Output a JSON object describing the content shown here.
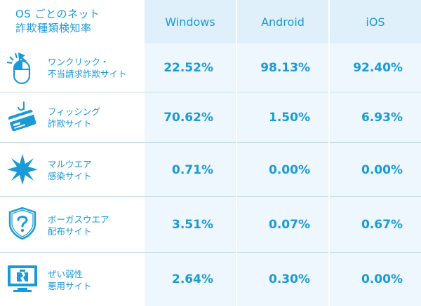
{
  "header": {
    "title_line1": "OS ごとのネット",
    "title_line2": "詐欺種類検知率",
    "columns": [
      "Windows",
      "Android",
      "iOS"
    ]
  },
  "rows": [
    {
      "label_line1": "ワンクリック・",
      "label_line2": "不当請求詐欺サイト",
      "icon": "mouse-click-icon",
      "values": [
        "22.52%",
        "98.13%",
        "92.40%"
      ]
    },
    {
      "label_line1": "フィッシング",
      "label_line2": "詐欺サイト",
      "icon": "phishing-card-icon",
      "values": [
        "70.62%",
        "1.50%",
        "6.93%"
      ]
    },
    {
      "label_line1": "マルウエア",
      "label_line2": "感染サイト",
      "icon": "malware-burst-icon",
      "values": [
        "0.71%",
        "0.00%",
        "0.00%"
      ]
    },
    {
      "label_line1": "ボーガスウエア",
      "label_line2": "配布サイト",
      "icon": "bogus-shield-icon",
      "values": [
        "3.51%",
        "0.07%",
        "0.67%"
      ]
    },
    {
      "label_line1": "ぜい弱性",
      "label_line2": "悪用サイト",
      "icon": "broken-monitor-icon",
      "values": [
        "2.64%",
        "0.30%",
        "0.00%"
      ]
    }
  ],
  "colors": {
    "accent": "#1a9ad6",
    "header_bg": "#dff0fb",
    "cell_bg": "#eef7fd",
    "separator": "#c9dde9"
  }
}
